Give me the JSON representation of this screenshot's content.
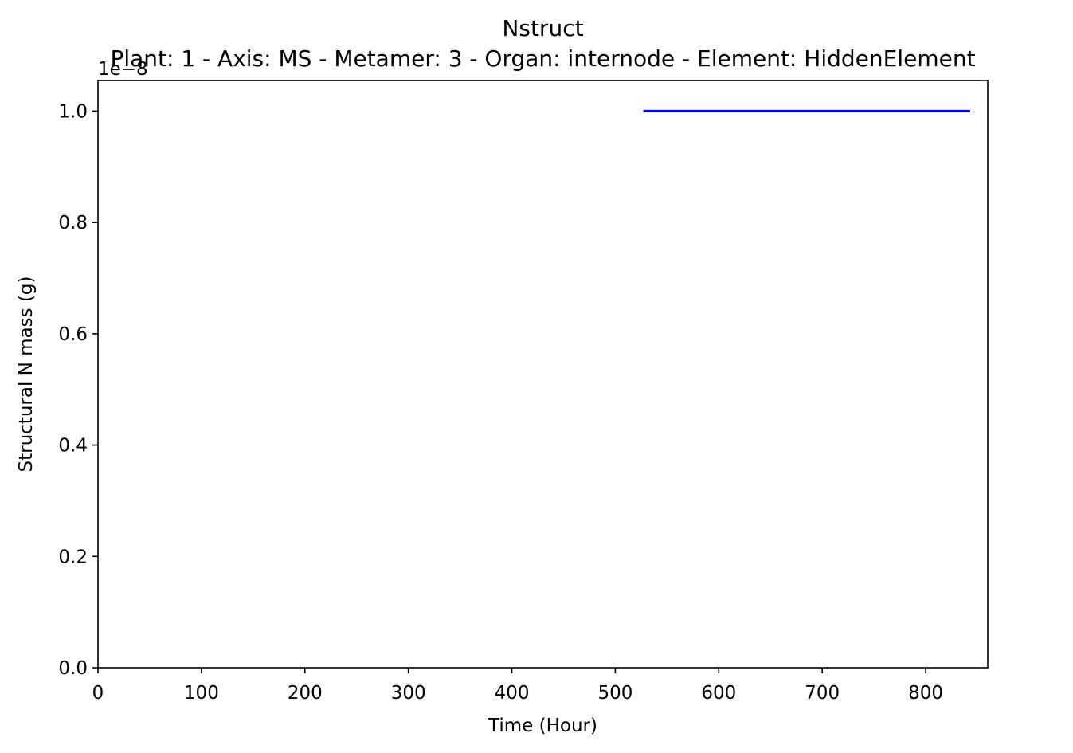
{
  "chart_data": {
    "type": "line",
    "title": "Nstruct",
    "subtitle": "Plant: 1 - Axis: MS - Metamer: 3 - Organ: internode - Element: HiddenElement",
    "xlabel": "Time (Hour)",
    "ylabel": "Structural N mass (g)",
    "y_offset_label": "1e−8",
    "xlim": [
      0,
      860
    ],
    "ylim": [
      0,
      1.055
    ],
    "x_ticks": [
      0,
      100,
      200,
      300,
      400,
      500,
      600,
      700,
      800
    ],
    "y_ticks": [
      0.0,
      0.2,
      0.4,
      0.6,
      0.8,
      1.0
    ],
    "x_tick_labels": [
      "0",
      "100",
      "200",
      "300",
      "400",
      "500",
      "600",
      "700",
      "800"
    ],
    "y_tick_labels": [
      "0.0",
      "0.2",
      "0.4",
      "0.6",
      "0.8",
      "1.0"
    ],
    "grid": false,
    "series": [
      {
        "color": "#0000ff",
        "x": [
          527,
          843
        ],
        "y": [
          1.0,
          1.0
        ]
      }
    ]
  }
}
